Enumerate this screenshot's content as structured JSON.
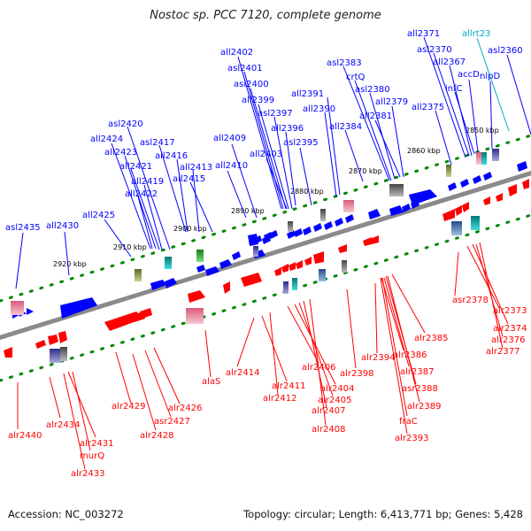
{
  "title": "Nostoc sp. PCC 7120, complete genome",
  "footer": {
    "accession": "Accession: NC_003272",
    "topology": "Topology: circular; Length: 6,413,771 bp; Genes: 5,428"
  },
  "colors": {
    "forward": "#0000ff",
    "reverse": "#ff0000",
    "trna": "#00aacc",
    "backbone": "#7f7f7f",
    "tick": "#008800"
  },
  "scale": {
    "start_kbp": 2850,
    "end_kbp": 2920,
    "step_kbp": 10,
    "unit": "kbp"
  },
  "labels_top": [
    "asl2435",
    "all2430",
    "all2425",
    "all2424",
    "all2423",
    "all2421",
    "all2419",
    "all2422",
    "asl2420",
    "asl2417",
    "all2416",
    "all2413",
    "all2415",
    "all2410",
    "all2409",
    "all2402",
    "asl2401",
    "asl2400",
    "all2399",
    "asl2397",
    "all2396",
    "all2403",
    "asl2395",
    "all2391",
    "all2390",
    "asl2383",
    "crtQ",
    "asl2380",
    "all2384",
    "all2381",
    "all2379",
    "all2375",
    "all2371",
    "asl2370",
    "all2367",
    "infC",
    "accD",
    "allrt23",
    "nlpD",
    "asl2360"
  ],
  "labels_bottom": [
    "alr2440",
    "alr2434",
    "alr2431",
    "murQ",
    "alr2433",
    "alr2429",
    "alr2428",
    "asr2427",
    "alr2426",
    "alaS",
    "alr2414",
    "alr2411",
    "alr2412",
    "alr2406",
    "alr2404",
    "alr2405",
    "alr2407",
    "alr2408",
    "alr2398",
    "alr2394",
    "alr2386",
    "alr2387",
    "asr2388",
    "alr2389",
    "fraC",
    "alr2393",
    "alr2385",
    "asr2378",
    "alr2373",
    "alr2374",
    "alr2376",
    "alr2377"
  ]
}
